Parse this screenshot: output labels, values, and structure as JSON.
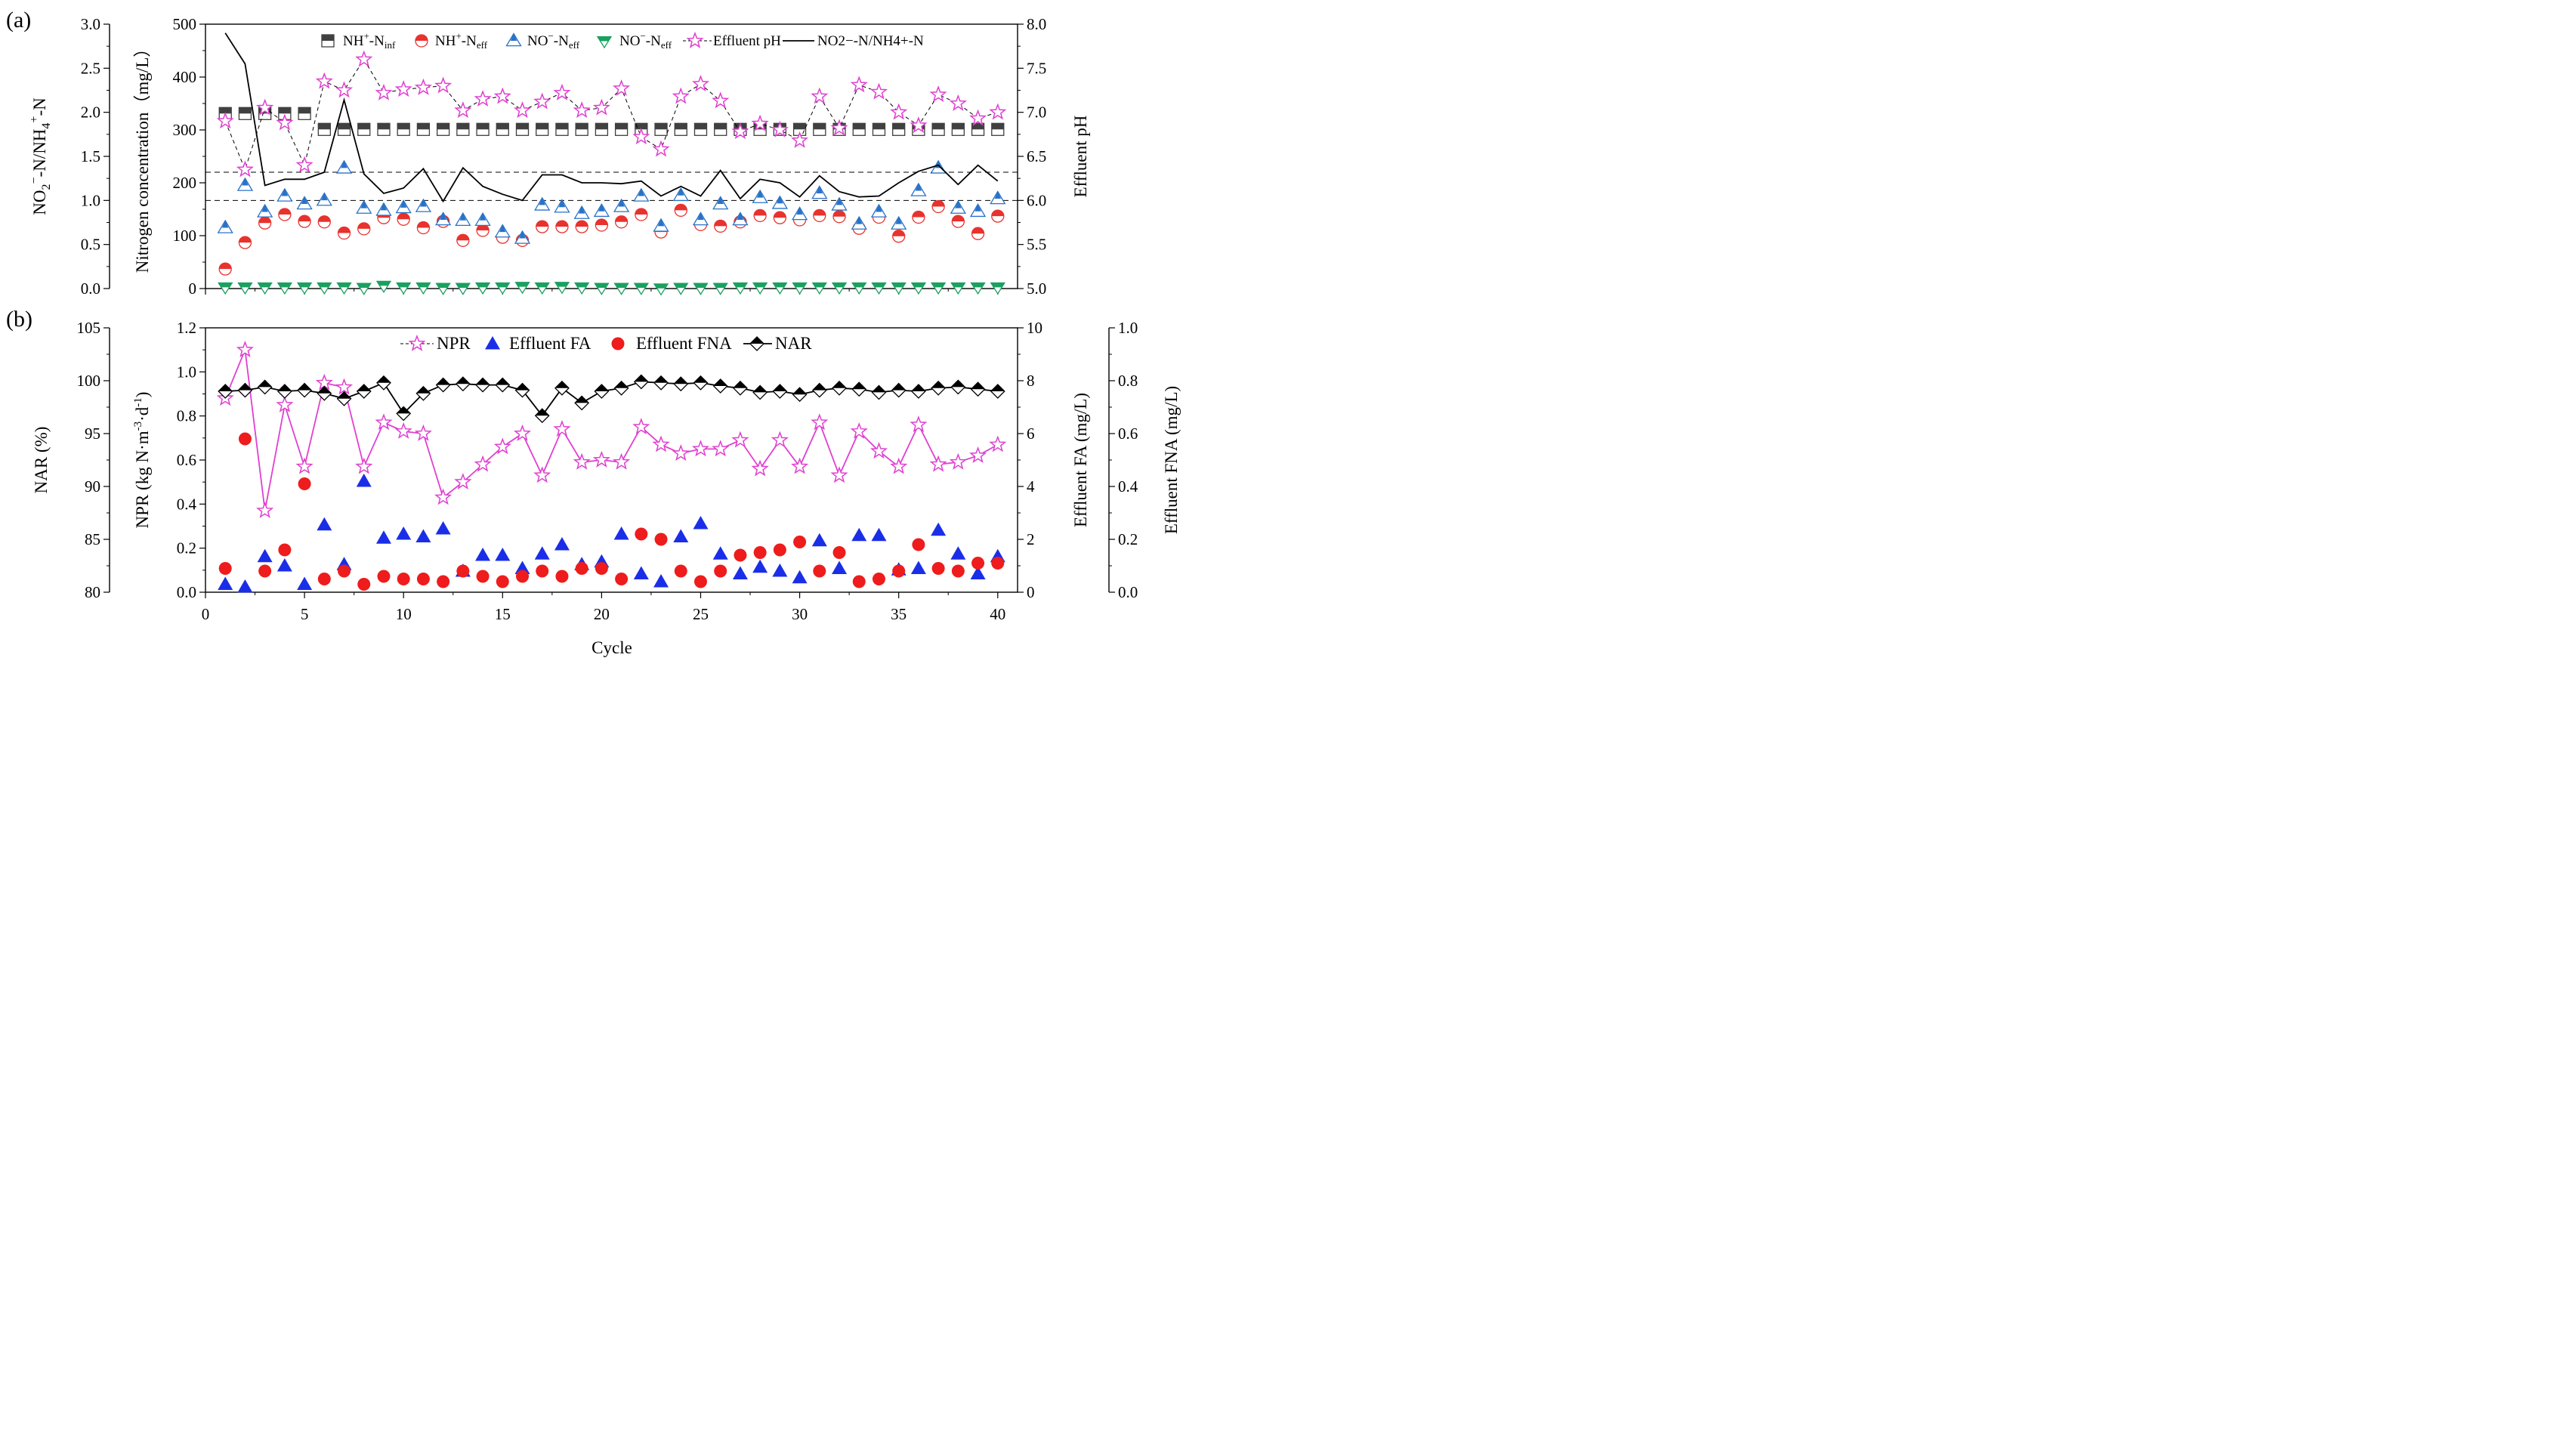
{
  "chart_data": [
    {
      "panel_label": "(a)",
      "type": "scatter+line",
      "x_ticks": [
        "0",
        "5",
        "10",
        "15",
        "20",
        "25",
        "30",
        "35",
        "40"
      ],
      "xlim": [
        0,
        41
      ],
      "axes": {
        "ratio": {
          "label": "NO2−-N/NH4+-N",
          "ylim": [
            0,
            3
          ],
          "ticks": [
            "0.0",
            "0.5",
            "1.0",
            "1.5",
            "2.0",
            "2.5",
            "3.0"
          ]
        },
        "nitrogen": {
          "label": "Nitrogen concentration（mg/L）",
          "ylim": [
            0,
            500
          ],
          "ticks": [
            "0",
            "100",
            "200",
            "300",
            "400",
            "500"
          ]
        },
        "ph": {
          "label": "Effluent pH",
          "ylim": [
            5,
            8
          ],
          "ticks": [
            "5.0",
            "5.5",
            "6.0",
            "6.5",
            "7.0",
            "7.5",
            "8.0"
          ]
        }
      },
      "reference_lines_ratio": [
        1.0,
        1.32
      ],
      "legend": [
        "NH4+-Ninf",
        "NH4+-Neff",
        "NO2−-Neff",
        "NO3−-Neff",
        "Effluent pH",
        "NO2−-N/NH4+-N"
      ],
      "legend_text": {
        "nh4inf": {
          "main": "NH",
          "sub1": "4",
          "sup": "+",
          "rest": "-N",
          "sub2": "inf"
        },
        "nh4eff": {
          "main": "NH",
          "sub1": "4",
          "sup": "+",
          "rest": "-N",
          "sub2": "eff"
        },
        "no2eff": {
          "main": "NO",
          "sub1": "2",
          "sup": "−",
          "rest": "-N",
          "sub2": "eff"
        },
        "no3eff": {
          "main": "NO",
          "sub1": "3",
          "sup": "−",
          "rest": "-N",
          "sub2": "eff"
        },
        "ph": "Effluent pH",
        "ratio": "NO2−-N/NH4+-N"
      },
      "series": [
        {
          "name": "NH4+-Ninf",
          "axis": "nitrogen",
          "marker": "square-half",
          "color": "#404040",
          "values": [
            331,
            331,
            331,
            331,
            331,
            301,
            301,
            301,
            301,
            301,
            301,
            301,
            301,
            301,
            301,
            301,
            301,
            301,
            301,
            301,
            301,
            301,
            301,
            301,
            301,
            301,
            301,
            301,
            301,
            301,
            301,
            301,
            301,
            301,
            301,
            301,
            301,
            301,
            301,
            301
          ]
        },
        {
          "name": "NH4+-Neff",
          "axis": "nitrogen",
          "marker": "circle-half",
          "color": "#e8322e",
          "values": [
            37,
            87,
            124,
            140,
            127,
            126,
            105,
            113,
            134,
            131,
            115,
            127,
            91,
            110,
            97,
            91,
            117,
            117,
            117,
            120,
            126,
            140,
            107,
            148,
            121,
            118,
            126,
            138,
            134,
            130,
            138,
            136,
            114,
            135,
            99,
            135,
            155,
            127,
            104,
            137
          ]
        },
        {
          "name": "NO2−-Neff",
          "axis": "nitrogen",
          "marker": "triangle-up-half",
          "color": "#2872c8",
          "values": [
            115,
            195,
            145,
            175,
            160,
            167,
            228,
            152,
            148,
            153,
            155,
            130,
            129,
            129,
            107,
            95,
            158,
            154,
            142,
            146,
            155,
            175,
            118,
            176,
            130,
            160,
            130,
            172,
            161,
            140,
            180,
            158,
            122,
            145,
            122,
            185,
            228,
            152,
            146,
            170
          ]
        },
        {
          "name": "NO3−-Neff",
          "axis": "nitrogen",
          "marker": "triangle-down-half",
          "color": "#1aa060",
          "values": [
            3,
            3,
            3,
            3,
            3,
            3,
            3,
            2,
            6,
            3,
            3,
            2,
            2,
            3,
            3,
            4,
            3,
            4,
            3,
            2,
            2,
            2,
            1,
            2,
            2,
            2,
            3,
            3,
            3,
            3,
            3,
            3,
            3,
            3,
            3,
            3,
            3,
            3,
            3,
            3
          ]
        },
        {
          "name": "Effluent pH",
          "axis": "ph",
          "marker": "star-open",
          "color": "#e040d0",
          "line": "dashed",
          "values": [
            6.9,
            6.35,
            7.05,
            6.88,
            6.4,
            7.35,
            7.25,
            7.6,
            7.22,
            7.26,
            7.28,
            7.3,
            7.02,
            7.15,
            7.18,
            7.02,
            7.12,
            7.22,
            7.02,
            7.05,
            7.27,
            6.72,
            6.58,
            7.18,
            7.32,
            7.13,
            6.78,
            6.87,
            6.8,
            6.68,
            7.18,
            6.82,
            7.31,
            7.23,
            7.0,
            6.85,
            7.2,
            7.1,
            6.93,
            7.0
          ]
        },
        {
          "name": "NO2−-N/NH4+-N",
          "axis": "ratio",
          "marker": "none",
          "color": "#000000",
          "line": "solid",
          "values": [
            2.9,
            2.55,
            1.17,
            1.24,
            1.24,
            1.32,
            2.14,
            1.3,
            1.08,
            1.14,
            1.36,
            0.99,
            1.37,
            1.16,
            1.07,
            1.0,
            1.29,
            1.29,
            1.2,
            1.2,
            1.19,
            1.22,
            1.05,
            1.16,
            1.05,
            1.34,
            1.02,
            1.24,
            1.2,
            1.04,
            1.28,
            1.1,
            1.04,
            1.05,
            1.2,
            1.33,
            1.4,
            1.18,
            1.4,
            1.22
          ]
        }
      ]
    },
    {
      "panel_label": "(b)",
      "type": "scatter+line",
      "xlabel": "Cycle",
      "x_ticks": [
        "0",
        "5",
        "10",
        "15",
        "20",
        "25",
        "30",
        "35",
        "40"
      ],
      "xlim": [
        0,
        41
      ],
      "axes": {
        "nar": {
          "label": "NAR (%)",
          "ylim": [
            80,
            105
          ],
          "ticks": [
            "80",
            "85",
            "90",
            "95",
            "100",
            "105"
          ]
        },
        "npr": {
          "label": "NPR (kg N·m⁻³·d⁻¹)",
          "ylim": [
            0,
            1.2
          ],
          "ticks": [
            "0.0",
            "0.2",
            "0.4",
            "0.6",
            "0.8",
            "1.0",
            "1.2"
          ]
        },
        "fa": {
          "label": "Effluent FA (mg/L)",
          "ylim": [
            0,
            10
          ],
          "ticks": [
            "0",
            "2",
            "4",
            "6",
            "8",
            "10"
          ]
        },
        "fna": {
          "label": "Effluent FNA (mg/L)",
          "ylim": [
            0,
            1.0
          ],
          "ticks": [
            "0.0",
            "0.2",
            "0.4",
            "0.6",
            "0.8",
            "1.0"
          ]
        }
      },
      "legend": [
        "NPR",
        "Effluent FA",
        "Effluent FNA",
        "NAR"
      ],
      "series": [
        {
          "name": "NPR",
          "axis": "npr",
          "marker": "star-open",
          "color": "#e040d0",
          "line": "solid",
          "values": [
            0.88,
            1.1,
            0.37,
            0.85,
            0.57,
            0.95,
            0.93,
            0.57,
            0.77,
            0.73,
            0.72,
            0.43,
            0.5,
            0.58,
            0.66,
            0.72,
            0.53,
            0.74,
            0.59,
            0.6,
            0.59,
            0.75,
            0.67,
            0.63,
            0.65,
            0.65,
            0.69,
            0.56,
            0.69,
            0.57,
            0.77,
            0.53,
            0.73,
            0.64,
            0.57,
            0.76,
            0.58,
            0.59,
            0.62,
            0.67
          ]
        },
        {
          "name": "Effluent FA",
          "axis": "fa",
          "marker": "triangle-up-filled",
          "color": "#1a2ee8",
          "values": [
            0.3,
            0.2,
            1.35,
            1.0,
            0.3,
            2.55,
            1.05,
            4.2,
            2.05,
            2.2,
            2.1,
            2.4,
            0.8,
            1.4,
            1.4,
            0.9,
            1.45,
            1.8,
            1.05,
            1.15,
            2.2,
            0.7,
            0.4,
            2.1,
            2.6,
            1.45,
            0.7,
            0.95,
            0.8,
            0.55,
            1.95,
            0.9,
            2.15,
            2.15,
            0.85,
            0.9,
            2.35,
            1.45,
            0.7,
            1.35
          ]
        },
        {
          "name": "Effluent FNA",
          "axis": "fna",
          "marker": "circle-filled",
          "color": "#ee1c1c",
          "values": [
            0.09,
            0.58,
            0.08,
            0.16,
            0.41,
            0.05,
            0.08,
            0.03,
            0.06,
            0.05,
            0.05,
            0.04,
            0.08,
            0.06,
            0.04,
            0.06,
            0.08,
            0.06,
            0.09,
            0.09,
            0.05,
            0.22,
            0.2,
            0.08,
            0.04,
            0.08,
            0.14,
            0.15,
            0.16,
            0.19,
            0.08,
            0.15,
            0.04,
            0.05,
            0.08,
            0.18,
            0.09,
            0.08,
            0.11,
            0.11
          ]
        },
        {
          "name": "NAR",
          "axis": "nar",
          "marker": "diamond-half",
          "color": "#000000",
          "line": "solid",
          "values": [
            99.0,
            99.1,
            99.4,
            99.0,
            99.1,
            98.8,
            98.3,
            99.0,
            99.8,
            96.9,
            98.8,
            99.6,
            99.7,
            99.6,
            99.6,
            99.1,
            96.7,
            99.3,
            97.9,
            99.0,
            99.3,
            99.9,
            99.8,
            99.7,
            99.8,
            99.5,
            99.3,
            98.9,
            99.0,
            98.7,
            99.1,
            99.3,
            99.2,
            98.9,
            99.1,
            99.0,
            99.3,
            99.4,
            99.2,
            99.0
          ]
        }
      ]
    }
  ]
}
